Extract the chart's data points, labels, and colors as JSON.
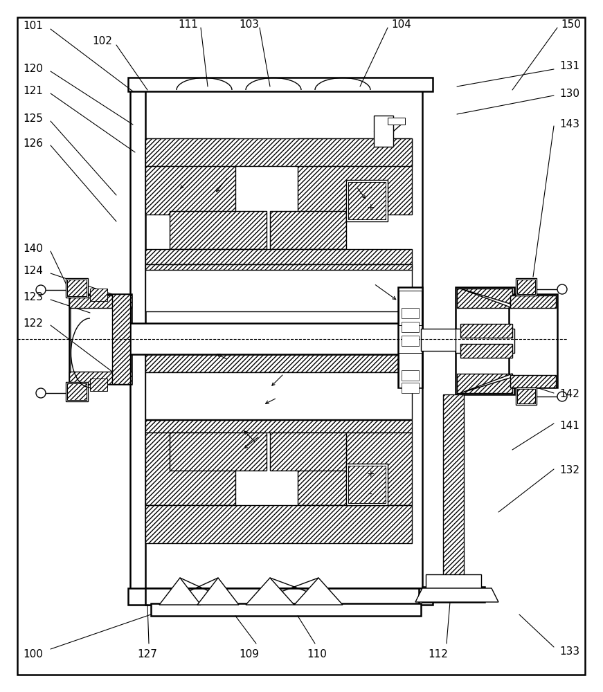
{
  "background_color": "#ffffff",
  "line_color": "#000000",
  "lw": 1.0,
  "lw2": 1.8,
  "fs": 11
}
